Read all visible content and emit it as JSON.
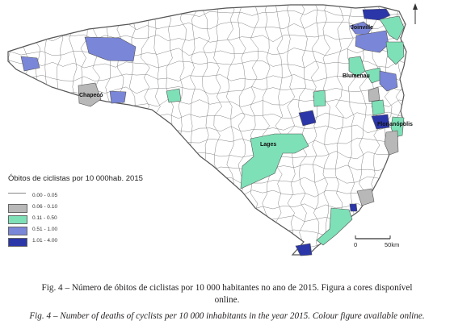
{
  "map": {
    "cities": [
      {
        "name": "Joinville",
        "color": "#7a86d8"
      },
      {
        "name": "Blumenau",
        "color": "#7a86d8"
      },
      {
        "name": "Chapecó",
        "color": "#b8b8b8"
      },
      {
        "name": "Florianópolis",
        "color": "#2b36a8"
      },
      {
        "name": "Lages",
        "color": "#7ee0b7"
      }
    ],
    "colors": {
      "class_0": "#ffffff",
      "class_1": "#b8b8b8",
      "class_2": "#7ee0b7",
      "class_3": "#7a86d8",
      "class_4": "#2b36a8",
      "boundary": "#777777",
      "outline": "#555555"
    }
  },
  "legend": {
    "title": "Óbitos de ciclistas por 10 000hab. 2015",
    "classes": [
      {
        "label": "0.00 - 0.05",
        "color": "#ffffff"
      },
      {
        "label": "0.06 - 0.10",
        "color": "#b8b8b8"
      },
      {
        "label": "0.11 - 0.50",
        "color": "#7ee0b7"
      },
      {
        "label": "0.51 - 1.00",
        "color": "#7a86d8"
      },
      {
        "label": "1.01 - 4.00",
        "color": "#2b36a8"
      }
    ]
  },
  "scale_bar": {
    "start_label": "0",
    "end_label": "50km"
  },
  "caption": {
    "pt_line1": "Fig. 4 – Número de óbitos de ciclistas por 10 000 habitantes no ano de 2015. Figura a cores disponível",
    "pt_line2": "online.",
    "en": "Fig. 4 – Number of deaths of cyclists per 10 000 inhabitants in the year 2015. Colour figure available online."
  }
}
